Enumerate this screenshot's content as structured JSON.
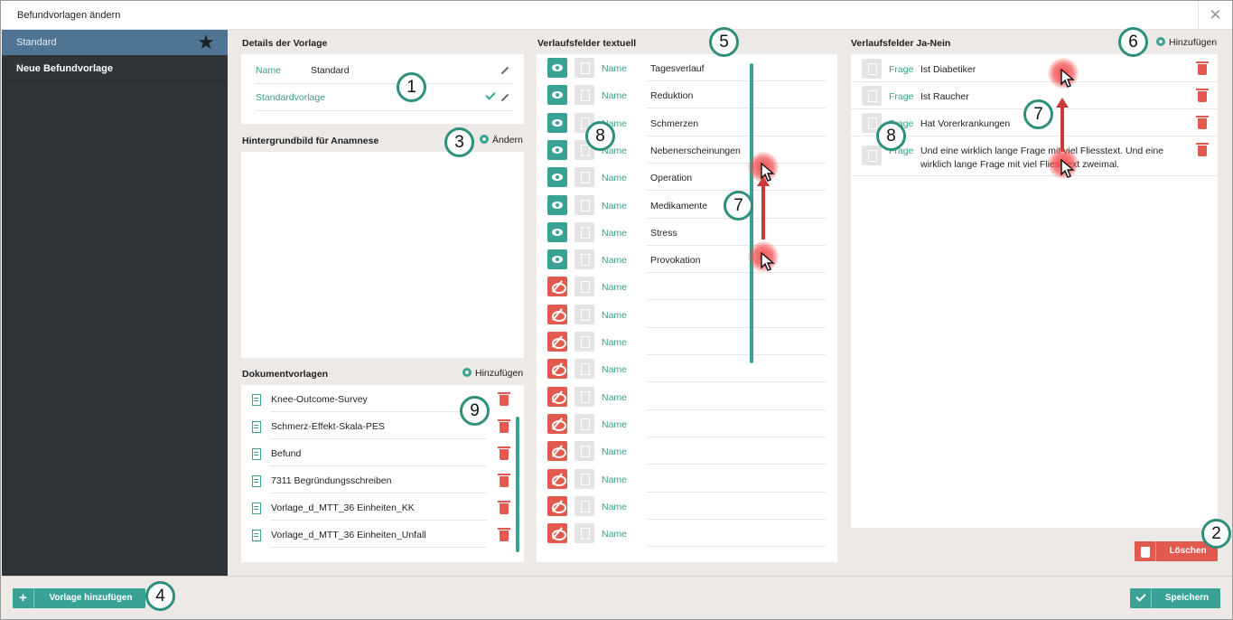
{
  "dialog": {
    "title": "Befundvorlagen ändern",
    "close_glyph": "✕"
  },
  "sidebar": {
    "items": [
      {
        "label": "Standard",
        "star": "★"
      },
      {
        "label": "Neue Befundvorlage"
      }
    ]
  },
  "details": {
    "title": "Details der Vorlage",
    "name_label": "Name",
    "name_value": "Standard",
    "default_label": "Standardvorlage"
  },
  "background": {
    "title": "Hintergrundbild für Anamnese",
    "change_label": "Ändern"
  },
  "documents": {
    "title": "Dokumentvorlagen",
    "add_label": "Hinzufügen",
    "items": [
      "Knee-Outcome-Survey",
      "Schmerz-Effekt-Skala-PES",
      "Befund",
      "7311 Begründungsschreiben",
      "Vorlage_d_MTT_36 Einheiten_KK",
      "Vorlage_d_MTT_36 Einheiten_Unfall"
    ]
  },
  "text_fields": {
    "title": "Verlaufsfelder textuell",
    "column_label": "Name",
    "rows": [
      {
        "value": "Tagesverlauf",
        "visible": true
      },
      {
        "value": "Reduktion",
        "visible": true
      },
      {
        "value": "Schmerzen",
        "visible": true
      },
      {
        "value": "Nebenerscheinungen",
        "visible": true
      },
      {
        "value": "Operation",
        "visible": true
      },
      {
        "value": "Medikamente",
        "visible": true
      },
      {
        "value": "Stress",
        "visible": true
      },
      {
        "value": "Provokation",
        "visible": true
      },
      {
        "value": "",
        "visible": false
      },
      {
        "value": "",
        "visible": false
      },
      {
        "value": "",
        "visible": false
      },
      {
        "value": "",
        "visible": false
      },
      {
        "value": "",
        "visible": false
      },
      {
        "value": "",
        "visible": false
      },
      {
        "value": "",
        "visible": false
      },
      {
        "value": "",
        "visible": false
      },
      {
        "value": "",
        "visible": false
      },
      {
        "value": "",
        "visible": false
      }
    ]
  },
  "yes_no_fields": {
    "title": "Verlaufsfelder Ja-Nein",
    "add_label": "Hinzufügen",
    "column_label": "Frage",
    "rows": [
      "Ist Diabetiker",
      "Ist Raucher",
      "Hat Vorerkrankungen",
      "Und eine wirklich lange Frage mit viel Fliesstext. Und eine wirklich lange Frage mit viel Fliesstext zweimal."
    ]
  },
  "buttons": {
    "delete": "Löschen",
    "add_template": "Vorlage hinzufügen",
    "save": "Speichern"
  },
  "callouts": [
    "1",
    "2",
    "3",
    "4",
    "5",
    "6",
    "7",
    "8",
    "9",
    "7",
    "8",
    "7"
  ],
  "colors": {
    "accent": "#3aa294",
    "danger": "#e25a4e",
    "sidebar": "#2f3439",
    "sidebar_active": "#4f7494"
  }
}
